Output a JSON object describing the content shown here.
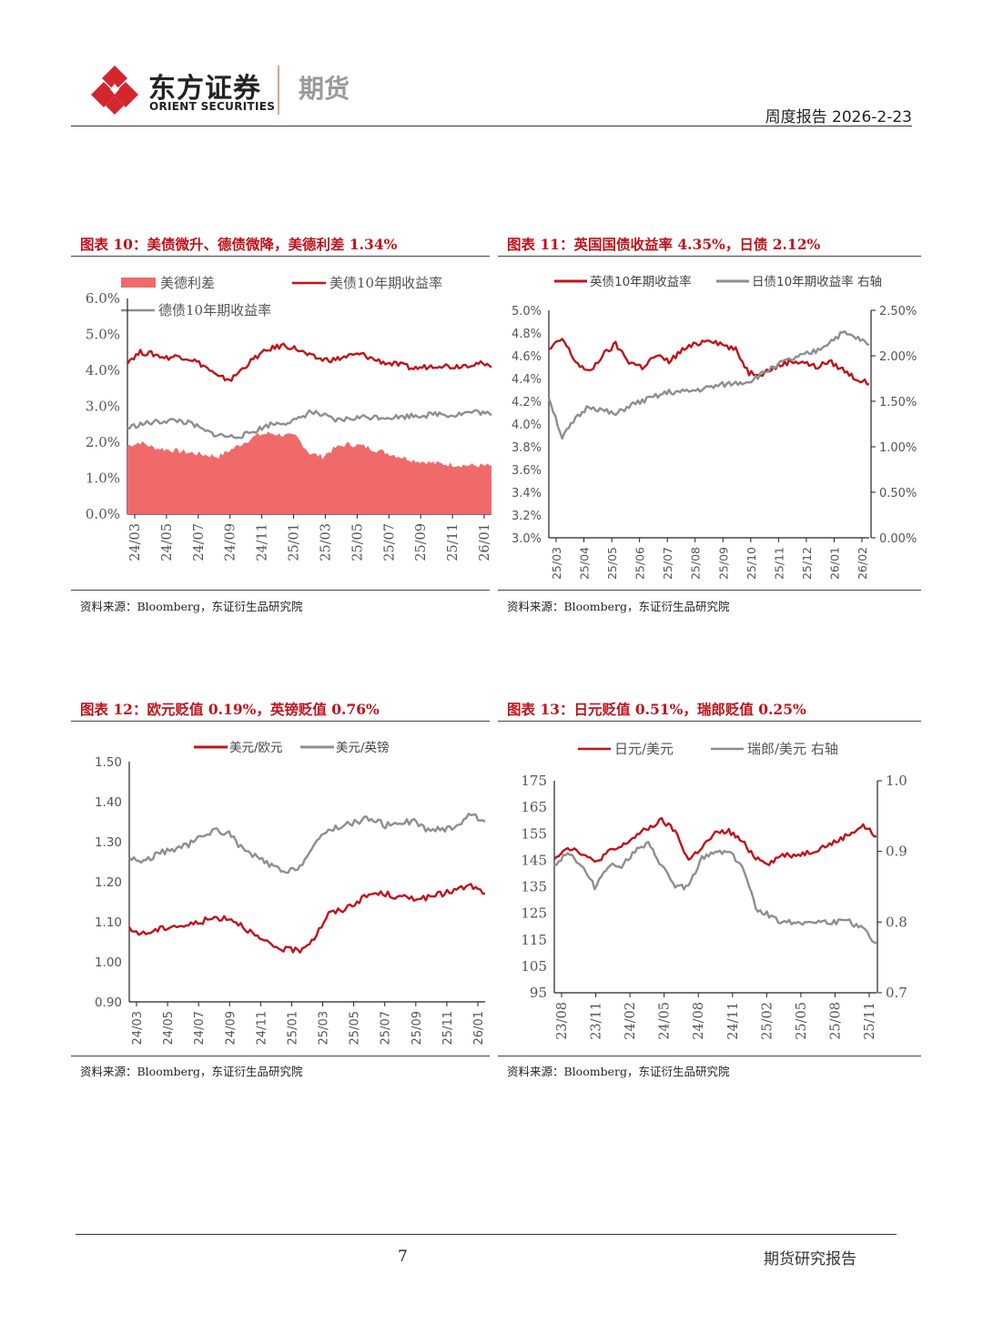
{
  "header": {
    "brand_cn": "东方证券",
    "brand_en": "ORIENT SECURITIES",
    "brand_sub": "期货",
    "report_meta": "周度报告  2026-2-23"
  },
  "figures": [
    {
      "title": "图表 10：美债微升、德债微降，美德利差 1.34%",
      "source": "资料来源：Bloomberg，东证衍生品研究院",
      "legend": [
        "美德利差",
        "美债10年期收益率",
        "德债10年期收益率"
      ]
    },
    {
      "title": "图表 11：英国国债收益率 4.35%，日债 2.12%",
      "source": "资料来源：Bloomberg，东证衍生品研究院",
      "legend": [
        "英债10年期收益率",
        "日债10年期收益率 右轴"
      ]
    },
    {
      "title": "图表 12：欧元贬值 0.19%，英镑贬值 0.76%",
      "source": "资料来源：Bloomberg，东证衍生品研究院",
      "legend": [
        "美元/欧元",
        "美元/英镑"
      ]
    },
    {
      "title": "图表 13：日元贬值 0.51%，瑞郎贬值 0.25%",
      "source": "资料来源：Bloomberg，东证衍生品研究院",
      "legend": [
        "日元/美元",
        "瑞郎/美元 右轴"
      ]
    }
  ],
  "chart_data": [
    {
      "type": "area",
      "x_ticks": [
        "24/03",
        "24/05",
        "24/07",
        "24/09",
        "24/11",
        "25/01",
        "25/03",
        "25/05",
        "25/07",
        "25/09",
        "25/11",
        "26/01"
      ],
      "y_ticks": [
        "0.0%",
        "1.0%",
        "2.0%",
        "3.0%",
        "4.0%",
        "5.0%",
        "6.0%"
      ],
      "ylim": [
        0,
        6
      ],
      "series": [
        {
          "name": "美德利差",
          "kind": "area",
          "color": "#f06a6a",
          "values": [
            1.9,
            2.0,
            1.85,
            1.8,
            1.75,
            1.7,
            1.65,
            1.6,
            1.8,
            2.0,
            2.2,
            2.25,
            2.2,
            2.15,
            1.7,
            1.6,
            1.85,
            1.95,
            1.9,
            1.8,
            1.7,
            1.6,
            1.5,
            1.45,
            1.4,
            1.38,
            1.36,
            1.35,
            1.34
          ]
        },
        {
          "name": "美债10年期收益率",
          "kind": "line",
          "color": "#c0131b",
          "values": [
            4.25,
            4.5,
            4.45,
            4.35,
            4.4,
            4.3,
            4.1,
            3.8,
            3.75,
            4.1,
            4.4,
            4.6,
            4.7,
            4.6,
            4.4,
            4.3,
            4.3,
            4.4,
            4.45,
            4.3,
            4.2,
            4.15,
            4.05,
            4.1,
            4.15,
            4.1,
            4.15,
            4.2,
            4.08
          ]
        },
        {
          "name": "德债10年期收益率",
          "kind": "line",
          "color": "#8e8e8e",
          "values": [
            2.4,
            2.5,
            2.55,
            2.6,
            2.6,
            2.5,
            2.3,
            2.2,
            2.15,
            2.2,
            2.35,
            2.5,
            2.55,
            2.6,
            2.85,
            2.75,
            2.6,
            2.65,
            2.7,
            2.7,
            2.7,
            2.7,
            2.75,
            2.75,
            2.8,
            2.75,
            2.82,
            2.85,
            2.75
          ]
        }
      ]
    },
    {
      "type": "line",
      "x_ticks": [
        "25/03",
        "25/04",
        "25/05",
        "25/06",
        "25/07",
        "25/08",
        "25/09",
        "25/10",
        "25/11",
        "25/12",
        "26/01",
        "26/02"
      ],
      "y_ticks": [
        "3.0%",
        "3.2%",
        "3.4%",
        "3.6%",
        "3.8%",
        "4.0%",
        "4.2%",
        "4.4%",
        "4.6%",
        "4.8%",
        "5.0%"
      ],
      "y2_ticks": [
        "0.00%",
        "0.50%",
        "1.00%",
        "1.50%",
        "2.00%",
        "2.50%"
      ],
      "ylim": [
        3.0,
        5.0
      ],
      "y2lim": [
        0,
        2.5
      ],
      "series": [
        {
          "name": "英债10年期收益率",
          "axis": "left",
          "color": "#c0131b",
          "values": [
            4.65,
            4.75,
            4.55,
            4.45,
            4.6,
            4.7,
            4.55,
            4.5,
            4.6,
            4.55,
            4.65,
            4.7,
            4.75,
            4.7,
            4.65,
            4.45,
            4.45,
            4.5,
            4.55,
            4.55,
            4.5,
            4.55,
            4.48,
            4.4,
            4.35
          ]
        },
        {
          "name": "日债10年期收益率 右轴",
          "axis": "right",
          "color": "#8e8e8e",
          "values": [
            1.55,
            1.1,
            1.3,
            1.45,
            1.4,
            1.35,
            1.45,
            1.5,
            1.55,
            1.6,
            1.6,
            1.62,
            1.65,
            1.68,
            1.7,
            1.72,
            1.8,
            1.9,
            1.95,
            2.0,
            2.05,
            2.15,
            2.25,
            2.2,
            2.12
          ]
        }
      ]
    },
    {
      "type": "line",
      "x_ticks": [
        "24/03",
        "24/05",
        "24/07",
        "24/09",
        "24/11",
        "25/01",
        "25/03",
        "25/05",
        "25/07",
        "25/09",
        "25/11",
        "26/01"
      ],
      "y_ticks": [
        "0.90",
        "1.00",
        "1.10",
        "1.20",
        "1.30",
        "1.40",
        "1.50"
      ],
      "ylim": [
        0.9,
        1.5
      ],
      "series": [
        {
          "name": "美元/欧元",
          "color": "#c0131b",
          "values": [
            1.08,
            1.07,
            1.08,
            1.09,
            1.09,
            1.1,
            1.11,
            1.11,
            1.09,
            1.06,
            1.04,
            1.03,
            1.03,
            1.06,
            1.12,
            1.13,
            1.15,
            1.17,
            1.17,
            1.16,
            1.16,
            1.16,
            1.17,
            1.18,
            1.19,
            1.17
          ]
        },
        {
          "name": "美元/英镑",
          "color": "#8e8e8e",
          "values": [
            1.26,
            1.25,
            1.27,
            1.28,
            1.29,
            1.31,
            1.33,
            1.32,
            1.28,
            1.26,
            1.24,
            1.22,
            1.24,
            1.29,
            1.33,
            1.34,
            1.35,
            1.36,
            1.34,
            1.35,
            1.35,
            1.33,
            1.33,
            1.34,
            1.37,
            1.35
          ]
        }
      ]
    },
    {
      "type": "line",
      "x_ticks": [
        "23/08",
        "23/11",
        "24/02",
        "24/05",
        "24/08",
        "24/11",
        "25/02",
        "25/05",
        "25/08",
        "25/11"
      ],
      "y_ticks": [
        "95",
        "105",
        "115",
        "125",
        "135",
        "145",
        "155",
        "165",
        "175"
      ],
      "y2_ticks": [
        "0.7",
        "0.8",
        "0.9",
        "1.0"
      ],
      "ylim": [
        95,
        175
      ],
      "y2lim": [
        0.7,
        1.0
      ],
      "series": [
        {
          "name": "日元/美元",
          "axis": "left",
          "color": "#c0131b",
          "values": [
            146,
            150,
            148,
            144,
            148,
            150,
            154,
            157,
            160,
            156,
            145,
            150,
            155,
            156,
            152,
            146,
            144,
            147,
            147,
            148,
            150,
            152,
            155,
            158,
            154
          ]
        },
        {
          "name": "瑞郎/美元 右轴",
          "axis": "right",
          "color": "#8e8e8e",
          "values": [
            0.88,
            0.9,
            0.88,
            0.85,
            0.88,
            0.88,
            0.9,
            0.91,
            0.88,
            0.85,
            0.85,
            0.89,
            0.9,
            0.9,
            0.88,
            0.82,
            0.81,
            0.8,
            0.8,
            0.8,
            0.8,
            0.8,
            0.8,
            0.79,
            0.77
          ]
        }
      ]
    }
  ],
  "footer": {
    "page_number": "7",
    "label": "期货研究报告"
  }
}
